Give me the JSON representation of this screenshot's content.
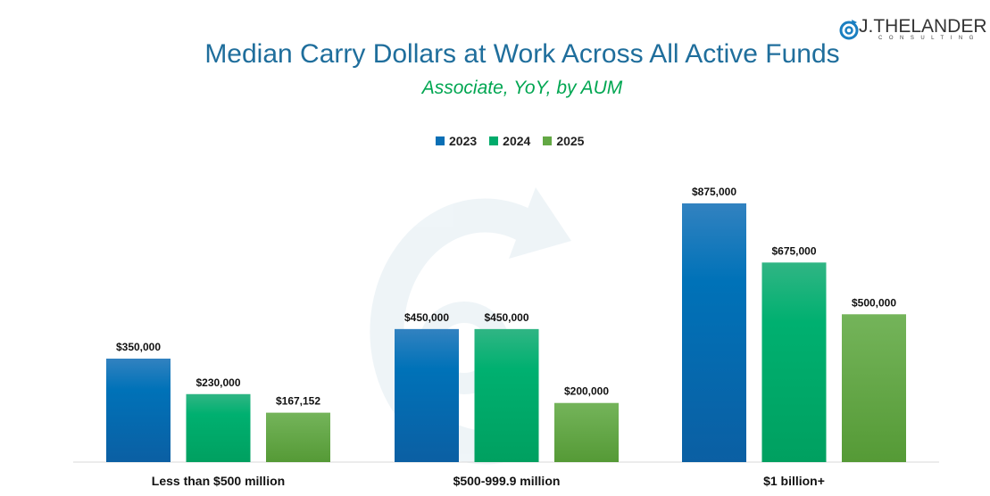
{
  "logo": {
    "name": "J.THELANDER",
    "sub": "CONSULTING"
  },
  "chart_data": {
    "type": "bar",
    "title": "Median Carry Dollars at Work Across All Active Funds",
    "subtitle": "Associate, YoY, by AUM",
    "categories": [
      "Less than $500 million",
      "$500-999.9 million",
      "$1 billion+"
    ],
    "series": [
      {
        "name": "2023",
        "color": "#0a6fb5",
        "values": [
          350000,
          450000,
          875000
        ],
        "labels": [
          "$350,000",
          "$450,000",
          "$875,000"
        ]
      },
      {
        "name": "2024",
        "color": "#00ab6b",
        "values": [
          230000,
          450000,
          675000
        ],
        "labels": [
          "$230,000",
          "$450,000",
          "$675,000"
        ]
      },
      {
        "name": "2025",
        "color": "#63a844",
        "values": [
          167152,
          200000,
          500000
        ],
        "labels": [
          "$167,152",
          "$200,000",
          "$500,000"
        ]
      }
    ],
    "legend_position": "top",
    "grid": false,
    "ylim": [
      0,
      875000
    ]
  }
}
